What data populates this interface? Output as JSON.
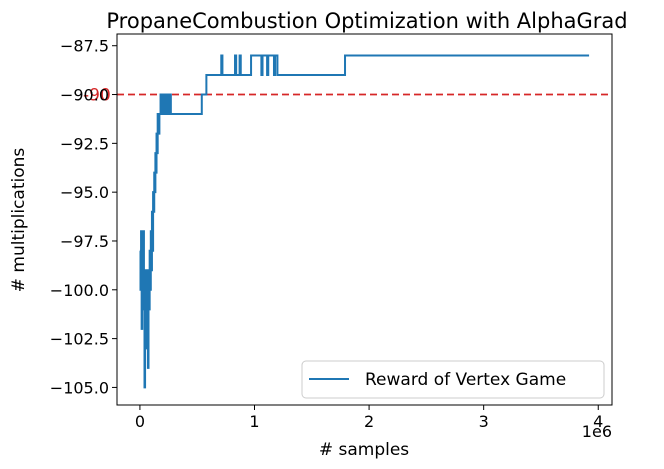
{
  "chart_data": {
    "type": "line",
    "title": "PropaneCombustion Optimization with AlphaGrad",
    "xlabel": "# samples",
    "ylabel": "# multiplications",
    "x_offset_label": "1e6",
    "x_scale": 1000000,
    "xlim": [
      -200000,
      4120000
    ],
    "ylim": [
      -105.9,
      -86.9
    ],
    "x_ticks": [
      0,
      1000000,
      2000000,
      3000000,
      4000000
    ],
    "x_tick_labels": [
      "0",
      "1",
      "2",
      "3",
      "4"
    ],
    "y_ticks": [
      -105.0,
      -102.5,
      -100.0,
      -97.5,
      -95.0,
      -92.5,
      -90.0,
      -87.5
    ],
    "y_tick_labels": [
      "−105.0",
      "−102.5",
      "−100.0",
      "−97.5",
      "−95.0",
      "−92.5",
      "−90.0",
      "−87.5"
    ],
    "grid": false,
    "legend_position": "bottom-right",
    "reference_line": {
      "y": -90,
      "color": "#d62728",
      "style": "dashed",
      "label": "-90"
    },
    "series": [
      {
        "name": "Reward of Vertex Game",
        "color": "#1f77b4",
        "x": [
          0,
          5000,
          10000,
          15000,
          20000,
          25000,
          30000,
          35000,
          40000,
          45000,
          50000,
          55000,
          60000,
          65000,
          70000,
          75000,
          80000,
          85000,
          90000,
          95000,
          100000,
          105000,
          110000,
          115000,
          120000,
          125000,
          130000,
          135000,
          140000,
          145000,
          150000,
          155000,
          160000,
          170000,
          180000,
          190000,
          200000,
          210000,
          220000,
          230000,
          240000,
          250000,
          260000,
          270000,
          280000,
          300000,
          400000,
          530000,
          540000,
          560000,
          580000,
          600000,
          700000,
          710000,
          720000,
          820000,
          830000,
          840000,
          860000,
          870000,
          880000,
          960000,
          970000,
          1060000,
          1070000,
          1110000,
          1120000,
          1170000,
          1180000,
          1200000,
          1780000,
          1790000,
          2000000,
          3000000,
          3920000
        ],
        "y": [
          -98,
          -100,
          -97,
          -102,
          -98,
          -101,
          -97,
          -99,
          -105,
          -100,
          -103,
          -99,
          -102,
          -100,
          -104,
          -99,
          -101,
          -98,
          -100,
          -97,
          -99,
          -96,
          -98,
          -95,
          -96,
          -94,
          -95,
          -93,
          -94,
          -92,
          -93,
          -91,
          -92,
          -91,
          -90,
          -91,
          -90,
          -91,
          -90,
          -91,
          -90,
          -91,
          -90,
          -91,
          -91,
          -91,
          -91,
          -91,
          -90,
          -90,
          -89,
          -89,
          -89,
          -88,
          -89,
          -89,
          -88,
          -89,
          -89,
          -88,
          -89,
          -89,
          -88,
          -89,
          -88,
          -89,
          -88,
          -89,
          -88,
          -89,
          -89,
          -88,
          -88,
          -88,
          -88
        ]
      }
    ]
  }
}
